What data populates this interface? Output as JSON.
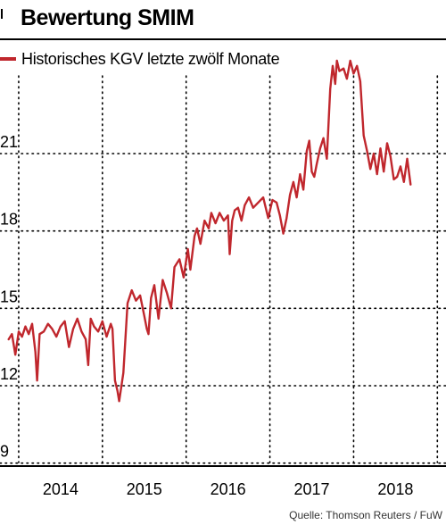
{
  "title": "Bewertung SMIM",
  "legend": {
    "label": "Historisches KGV letzte zwölf Monate",
    "color": "#c0272d"
  },
  "source": "Quelle: Thomson Reuters / FuW",
  "chart_data": {
    "type": "line",
    "title": "Bewertung SMIM",
    "xlabel": "",
    "ylabel": "",
    "ylim": [
      9,
      25
    ],
    "xlim": [
      2013.33,
      2018.55
    ],
    "yticks": [
      9,
      12,
      15,
      18,
      21
    ],
    "xticks": [
      "2014",
      "2015",
      "2016",
      "2017",
      "2018"
    ],
    "grid": "dotted",
    "series": [
      {
        "name": "Historisches KGV letzte zwölf Monate",
        "color": "#c0272d",
        "x": [
          2013.38,
          2013.42,
          2013.46,
          2013.5,
          2013.54,
          2013.58,
          2013.62,
          2013.66,
          2013.7,
          2013.72,
          2013.75,
          2013.8,
          2013.85,
          2013.9,
          2013.95,
          2014.0,
          2014.05,
          2014.1,
          2014.15,
          2014.2,
          2014.25,
          2014.3,
          2014.33,
          2014.36,
          2014.4,
          2014.45,
          2014.5,
          2014.55,
          2014.6,
          2014.62,
          2014.65,
          2014.68,
          2014.7,
          2014.75,
          2014.8,
          2014.85,
          2014.9,
          2014.95,
          2015.0,
          2015.03,
          2015.05,
          2015.08,
          2015.12,
          2015.17,
          2015.22,
          2015.27,
          2015.32,
          2015.36,
          2015.42,
          2015.47,
          2015.52,
          2015.55,
          2015.6,
          2015.63,
          2015.67,
          2015.72,
          2015.77,
          2015.8,
          2015.85,
          2015.9,
          2015.95,
          2016.0,
          2016.02,
          2016.05,
          2016.08,
          2016.12,
          2016.16,
          2016.2,
          2016.25,
          2016.3,
          2016.36,
          2016.42,
          2016.48,
          2016.53,
          2016.58,
          2016.62,
          2016.66,
          2016.7,
          2016.74,
          2016.78,
          2016.82,
          2016.86,
          2016.9,
          2016.94,
          2016.97,
          2017.0,
          2017.03,
          2017.06,
          2017.1,
          2017.14,
          2017.18,
          2017.22,
          2017.25,
          2017.28,
          2017.3,
          2017.33,
          2017.38,
          2017.42,
          2017.46,
          2017.5,
          2017.54,
          2017.58,
          2017.62,
          2017.66,
          2017.7,
          2017.74,
          2017.78,
          2017.82,
          2017.86,
          2017.9,
          2017.94,
          2017.98,
          2018.02,
          2018.06,
          2018.1,
          2018.14,
          2018.18
        ],
        "y": [
          13.8,
          14.0,
          13.2,
          14.1,
          13.9,
          14.3,
          14.0,
          14.4,
          13.3,
          12.2,
          14.0,
          14.1,
          14.4,
          14.2,
          13.9,
          14.3,
          14.5,
          13.5,
          14.2,
          14.6,
          14.1,
          13.8,
          12.8,
          14.6,
          14.3,
          14.1,
          14.5,
          13.9,
          14.4,
          14.2,
          12.2,
          11.8,
          11.4,
          12.5,
          15.2,
          15.7,
          15.3,
          15.5,
          14.7,
          14.2,
          14.0,
          15.4,
          15.9,
          14.6,
          16.1,
          15.6,
          15.0,
          16.6,
          16.9,
          16.2,
          17.3,
          16.5,
          17.8,
          18.1,
          17.5,
          18.4,
          18.1,
          18.7,
          18.3,
          18.7,
          18.4,
          18.6,
          17.1,
          18.4,
          18.8,
          18.9,
          18.4,
          19.0,
          19.3,
          18.9,
          19.1,
          19.3,
          18.5,
          19.2,
          19.1,
          18.6,
          17.9,
          18.5,
          19.4,
          19.9,
          19.3,
          20.2,
          19.6,
          21.1,
          21.5,
          20.3,
          20.1,
          20.6,
          21.2,
          21.6,
          20.8,
          23.5,
          24.4,
          23.7,
          24.6,
          24.2,
          24.3,
          23.9,
          24.6,
          24.1,
          24.4,
          23.8,
          21.7,
          21.1,
          20.4,
          21.0,
          20.2,
          21.2,
          20.3,
          21.4,
          20.9,
          20.0,
          20.1,
          20.5,
          19.9,
          20.8,
          19.8
        ]
      }
    ]
  }
}
